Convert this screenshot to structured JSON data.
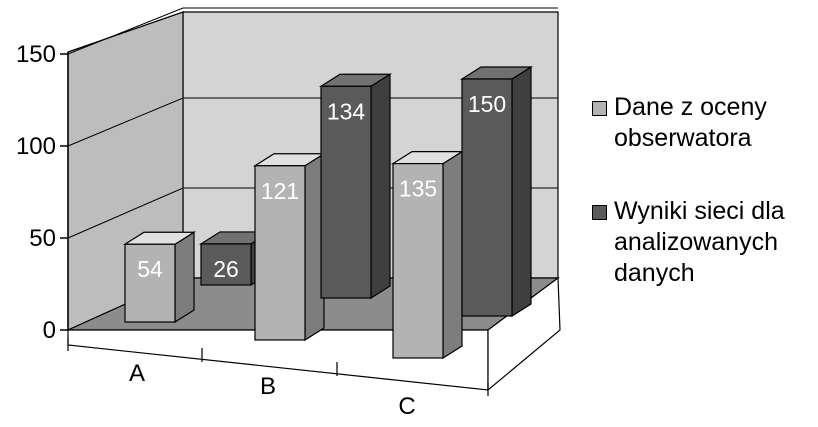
{
  "chart_data": {
    "type": "bar",
    "categories": [
      "A",
      "B",
      "C"
    ],
    "series": [
      {
        "name": "Dane z oceny obserwatora",
        "values": [
          54,
          121,
          135
        ],
        "color": "#b3b3b3"
      },
      {
        "name": "Wyniki sieci dla analizowanych danych",
        "values": [
          26,
          134,
          150
        ],
        "color": "#5a5a5a"
      }
    ],
    "yticks": [
      "0",
      "50",
      "100",
      "150"
    ],
    "ylim": [
      0,
      150
    ],
    "title": "",
    "xlabel": "",
    "ylabel": "",
    "style": "3d-clustered",
    "grid": true,
    "legend_position": "right",
    "data_labels": true
  },
  "legend": [
    {
      "lines": [
        "Dane z oceny",
        "obserwatora"
      ],
      "color": "#b3b3b3"
    },
    {
      "lines": [
        "Wyniki sieci dla",
        "analizowanych",
        "danych"
      ],
      "color": "#5a5a5a"
    }
  ]
}
